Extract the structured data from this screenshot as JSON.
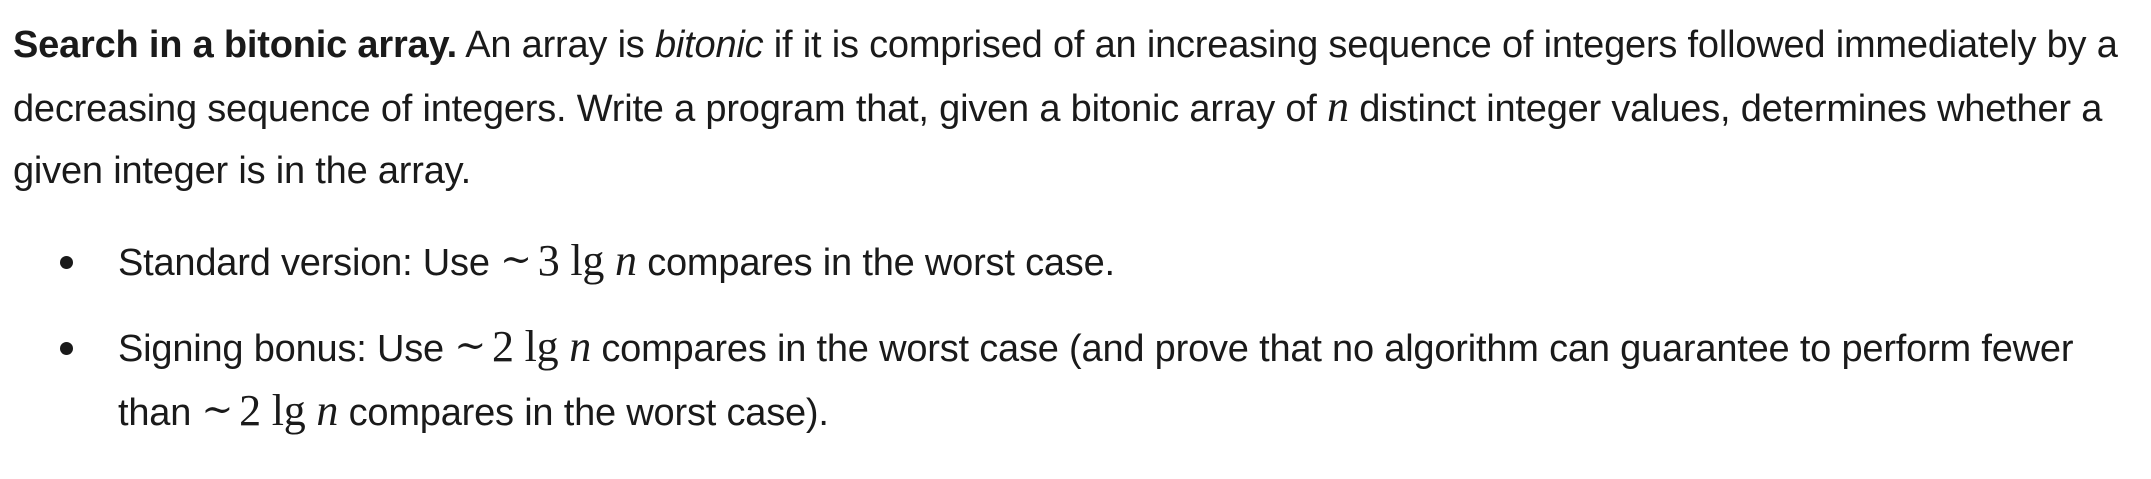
{
  "exercise": {
    "title": "Search in a bitonic array.",
    "intro_1": " An array is ",
    "intro_em": "bitonic",
    "intro_2": " if it is comprised of an increasing sequence of integers followed immediately by a decreasing sequence of integers. Write a program that, given a bitonic array of ",
    "var_n": "n",
    "intro_3": " distinct integer values, determines whether a given integer is in the array."
  },
  "items": [
    {
      "lead": "Standard version: Use ",
      "tilde": "∼",
      "coef": "3",
      "lg": " lg ",
      "var": "n",
      "tail": " compares in the worst case."
    },
    {
      "lead": "Signing bonus: Use ",
      "tilde": "∼",
      "coef": "2",
      "lg": " lg ",
      "var": "n",
      "mid": " compares in the worst case (and prove that no algorithm can guarantee to perform fewer than ",
      "tilde2": "∼",
      "coef2": "2",
      "lg2": " lg ",
      "var2": "n",
      "tail": " compares in the worst case)."
    }
  ]
}
